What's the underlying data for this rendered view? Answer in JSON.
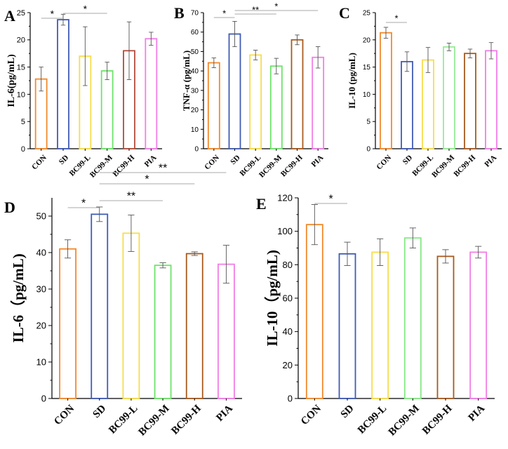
{
  "chart_data": [
    {
      "panel": "A",
      "type": "bar",
      "ylabel": "IL-6(pg/mL)",
      "ylim": [
        0,
        25
      ],
      "yticks": [
        0,
        5,
        10,
        15,
        20,
        25
      ],
      "categories": [
        "CON",
        "SD",
        "BC99-L",
        "BC99-M",
        "BC99-H",
        "PIA"
      ],
      "values": [
        12.8,
        23.7,
        17.0,
        14.3,
        18.0,
        20.2
      ],
      "errors": [
        2.2,
        1.0,
        5.4,
        1.6,
        5.3,
        1.2
      ],
      "colors": [
        "#f28a2e",
        "#3f5bb5",
        "#f7dd4c",
        "#6de36a",
        "#b34a3a",
        "#f27ee6"
      ],
      "significance": [
        {
          "from": "CON",
          "to": "SD",
          "label": "*"
        },
        {
          "from": "SD",
          "to": "BC99-M",
          "label": "*"
        }
      ]
    },
    {
      "panel": "B",
      "type": "bar",
      "ylabel": "TNF-α (pg/mL)",
      "ylim": [
        0,
        70
      ],
      "yticks": [
        0,
        10,
        20,
        30,
        40,
        50,
        60,
        70
      ],
      "categories": [
        "CON",
        "SD",
        "BC99-L",
        "BC99-M",
        "BC99-H",
        "PIA"
      ],
      "values": [
        44.2,
        59.0,
        48.2,
        42.5,
        56.0,
        47.0
      ],
      "errors": [
        2.5,
        6.5,
        2.5,
        4.0,
        2.5,
        5.5
      ],
      "colors": [
        "#f28a2e",
        "#3f5bb5",
        "#f7dd4c",
        "#6de36a",
        "#a85a1e",
        "#f27ee6"
      ],
      "significance": [
        {
          "from": "CON",
          "to": "SD",
          "label": "*"
        },
        {
          "from": "SD",
          "to": "BC99-M",
          "label": "**"
        },
        {
          "from": "SD",
          "to": "PIA",
          "label": "*"
        }
      ]
    },
    {
      "panel": "C",
      "type": "bar",
      "ylabel": "IL-10 (pg/mL)",
      "ylim": [
        0,
        25
      ],
      "yticks": [
        0,
        5,
        10,
        15,
        20,
        25
      ],
      "categories": [
        "CON",
        "SD",
        "BC99-L",
        "BC99-M",
        "BC99-H",
        "PIA"
      ],
      "values": [
        21.3,
        16.0,
        16.3,
        18.7,
        17.5,
        18.0
      ],
      "errors": [
        1.0,
        1.8,
        2.3,
        0.7,
        0.8,
        1.5
      ],
      "colors": [
        "#f28a2e",
        "#3f5bb5",
        "#f7dd4c",
        "#98ea98",
        "#a85a1e",
        "#f27ee6"
      ],
      "significance": [
        {
          "from": "CON",
          "to": "SD",
          "label": "*"
        }
      ]
    },
    {
      "panel": "D",
      "type": "bar",
      "ylabel": "IL-6（pg/mL)",
      "ylim": [
        0,
        55
      ],
      "yticks": [
        0,
        10,
        20,
        30,
        40,
        50
      ],
      "categories": [
        "CON",
        "SD",
        "BC99-L",
        "BC99-M",
        "BC99-H",
        "PIA"
      ],
      "values": [
        41.0,
        50.5,
        45.3,
        36.5,
        39.7,
        36.8
      ],
      "errors": [
        2.5,
        2.0,
        5.0,
        0.7,
        0.5,
        5.2
      ],
      "colors": [
        "#f28a2e",
        "#3f5bb5",
        "#f7dd4c",
        "#6de36a",
        "#a85a1e",
        "#f27ee6"
      ],
      "significance": [
        {
          "from": "CON",
          "to": "SD",
          "label": "*"
        },
        {
          "from": "SD",
          "to": "BC99-M",
          "label": "**"
        },
        {
          "from": "SD",
          "to": "BC99-H",
          "label": "*"
        },
        {
          "from": "SD",
          "to": "PIA",
          "label": "**"
        }
      ]
    },
    {
      "panel": "E",
      "type": "bar",
      "ylabel": "IL-10（pg/mL)",
      "ylim": [
        0,
        120
      ],
      "yticks": [
        0,
        20,
        40,
        60,
        80,
        100,
        120
      ],
      "categories": [
        "CON",
        "SD",
        "BC99-L",
        "BC99-M",
        "BC99-H",
        "PIA"
      ],
      "values": [
        104.0,
        86.5,
        87.5,
        96.0,
        85.0,
        87.5
      ],
      "errors": [
        12.0,
        7.0,
        8.0,
        6.0,
        4.0,
        3.5
      ],
      "colors": [
        "#f28a2e",
        "#3f5bb5",
        "#f7dd4c",
        "#86e886",
        "#a85a1e",
        "#f27ee6"
      ],
      "significance": [
        {
          "from": "CON",
          "to": "SD",
          "label": "*"
        }
      ]
    }
  ]
}
